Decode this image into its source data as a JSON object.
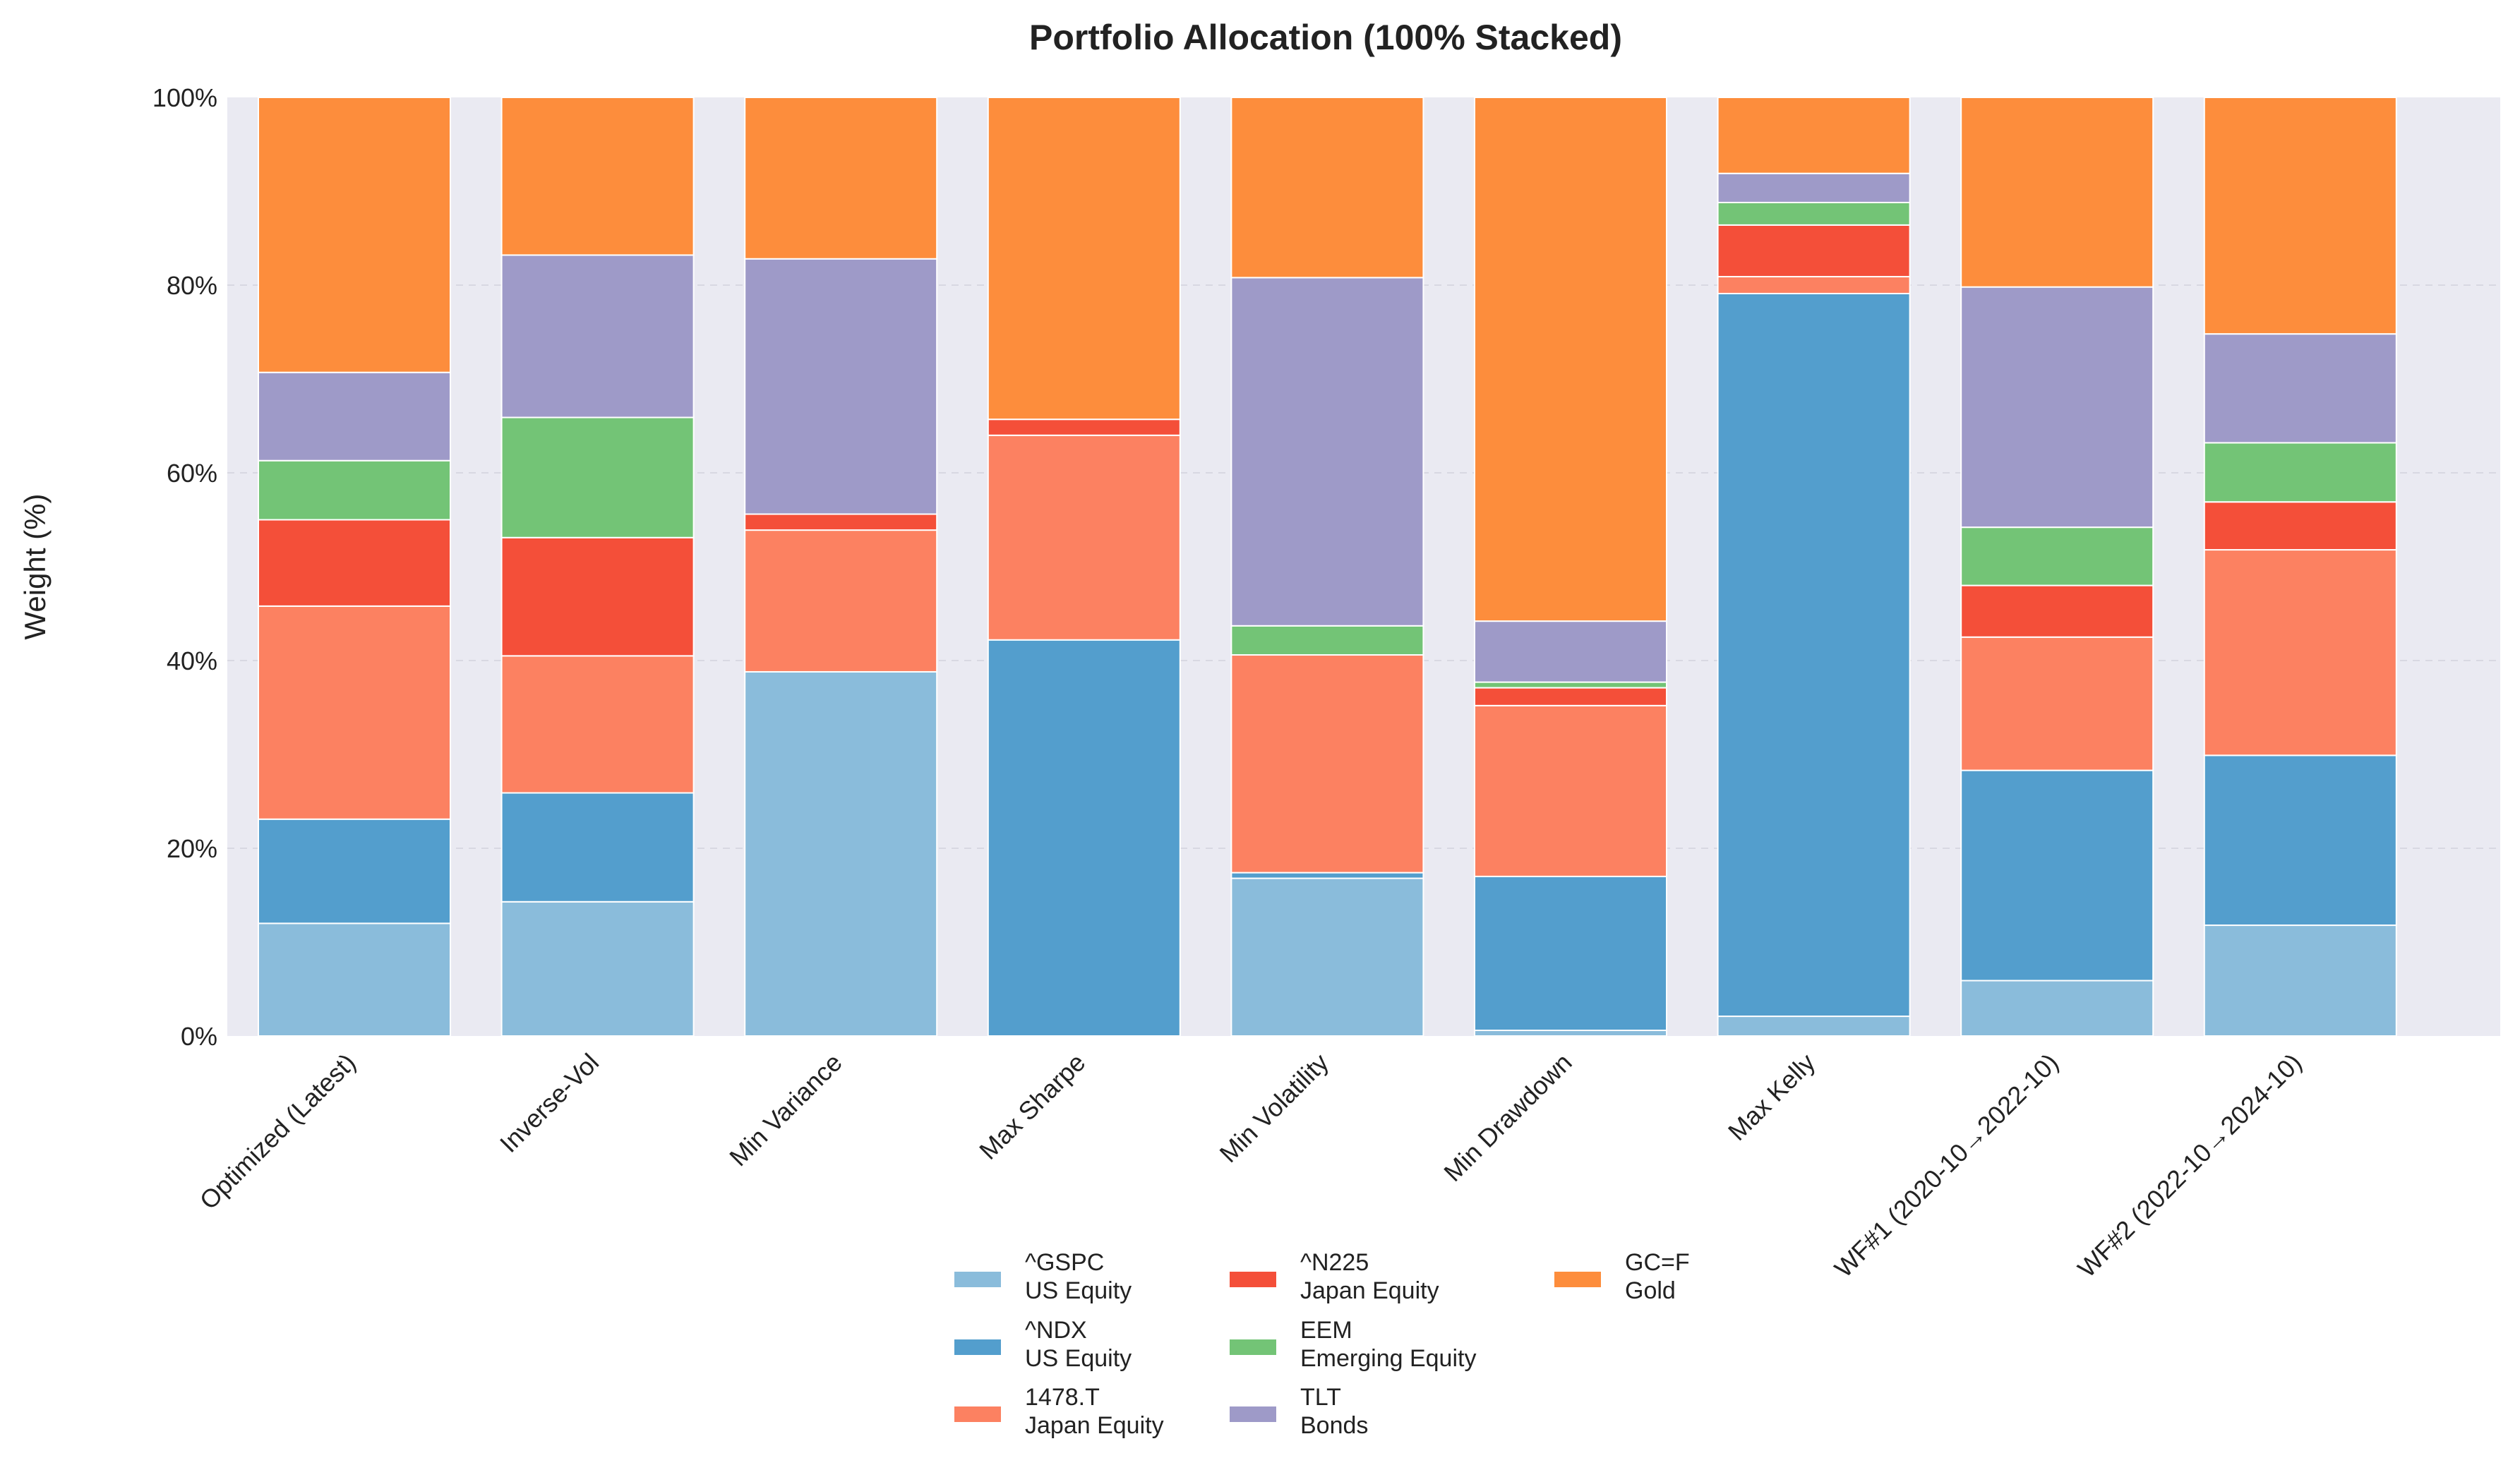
{
  "chart_data": {
    "type": "bar",
    "stacked": true,
    "title": "Portfolio Allocation (100% Stacked)",
    "xlabel": "",
    "ylabel": "Weight (%)",
    "ylim": [
      0,
      100
    ],
    "yticks": [
      0,
      20,
      40,
      60,
      80,
      100
    ],
    "ytick_suffix": "%",
    "grid": "horizontal-dashed",
    "legend_placement": "bottom-center",
    "categories": [
      "Optimized (Latest)",
      "Inverse-Vol",
      "Min Variance",
      "Max Sharpe",
      "Min Volatility",
      "Min Drawdown",
      "Max Kelly",
      "WF#1 (2020-10→2022-10)",
      "WF#2 (2022-10→2024-10)"
    ],
    "series": [
      {
        "ticker": "^GSPC",
        "class": "US Equity",
        "color": "#8abcdb",
        "values": [
          12.0,
          14.3,
          38.8,
          0.0,
          16.8,
          0.6,
          2.1,
          5.9,
          11.8
        ]
      },
      {
        "ticker": "^NDX",
        "class": "US Equity",
        "color": "#539ecd",
        "values": [
          11.1,
          11.6,
          0.0,
          42.2,
          0.6,
          16.4,
          77.0,
          22.4,
          18.1
        ]
      },
      {
        "ticker": "1478.T",
        "class": "Japan Equity",
        "color": "#fc8161",
        "values": [
          22.7,
          14.6,
          15.1,
          21.8,
          23.2,
          18.2,
          1.8,
          14.2,
          21.9
        ]
      },
      {
        "ticker": "^N225",
        "class": "Japan Equity",
        "color": "#f44f39",
        "values": [
          9.2,
          12.6,
          1.7,
          1.7,
          0.0,
          1.9,
          5.5,
          5.5,
          5.1
        ]
      },
      {
        "ticker": "EEM",
        "class": "Emerging Equity",
        "color": "#73c476",
        "values": [
          6.3,
          12.8,
          0.0,
          0.0,
          3.1,
          0.6,
          2.4,
          6.2,
          6.3
        ]
      },
      {
        "ticker": "TLT",
        "class": "Bonds",
        "color": "#9e9ac8",
        "values": [
          9.4,
          17.3,
          27.2,
          0.0,
          37.1,
          6.5,
          3.1,
          25.6,
          11.6
        ]
      },
      {
        "ticker": "GC=F",
        "class": "Gold",
        "color": "#fd8d3c",
        "values": [
          29.3,
          16.8,
          17.2,
          34.3,
          19.2,
          55.8,
          8.1,
          20.2,
          25.2
        ]
      }
    ],
    "legend": {
      "entries": [
        {
          "ticker": "^GSPC",
          "class": "US Equity",
          "color": "#8abcdb"
        },
        {
          "ticker": "^NDX",
          "class": "US Equity",
          "color": "#539ecd"
        },
        {
          "ticker": "1478.T",
          "class": "Japan Equity",
          "color": "#fc8161"
        },
        {
          "ticker": "^N225",
          "class": "Japan Equity",
          "color": "#f44f39"
        },
        {
          "ticker": "EEM",
          "class": "Emerging Equity",
          "color": "#73c476"
        },
        {
          "ticker": "TLT",
          "class": "Bonds",
          "color": "#9e9ac8"
        },
        {
          "ticker": "GC=F",
          "class": "Gold",
          "color": "#fd8d3c"
        }
      ]
    },
    "colors": {
      "plot_background": "#eaeaf2",
      "grid": "#d8d8e2"
    }
  }
}
